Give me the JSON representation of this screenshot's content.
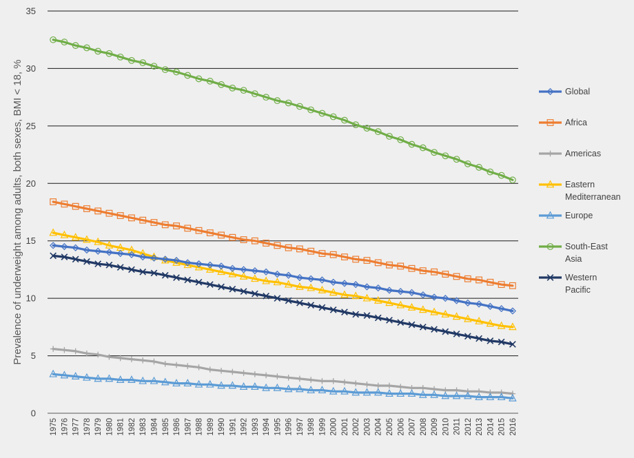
{
  "chart_data": {
    "type": "line",
    "ylabel": "Prevalence of underweight among adults, both sexes, BMI < 18, %",
    "ylim": [
      0,
      35
    ],
    "yticks": [
      "0",
      "5",
      "10",
      "15",
      "20",
      "25",
      "30",
      "35"
    ],
    "grid": true,
    "legend_position": "right",
    "x": [
      "1975",
      "1976",
      "1977",
      "1978",
      "1979",
      "1980",
      "1981",
      "1982",
      "1983",
      "1984",
      "1985",
      "1986",
      "1987",
      "1988",
      "1989",
      "1990",
      "1991",
      "1992",
      "1993",
      "1994",
      "1995",
      "1996",
      "1997",
      "1998",
      "1999",
      "2000",
      "2001",
      "2002",
      "2003",
      "2004",
      "2005",
      "2006",
      "2007",
      "2008",
      "2009",
      "2010",
      "2011",
      "2012",
      "2013",
      "2014",
      "2015",
      "2016"
    ],
    "series": [
      {
        "name": "Global",
        "legend_lines": [
          "Global"
        ],
        "color": "#4472c4",
        "marker": "diamond",
        "values": [
          14.6,
          14.5,
          14.4,
          14.2,
          14.1,
          14.0,
          13.9,
          13.8,
          13.6,
          13.5,
          13.4,
          13.3,
          13.1,
          13.0,
          12.9,
          12.8,
          12.6,
          12.5,
          12.4,
          12.3,
          12.1,
          12.0,
          11.8,
          11.7,
          11.6,
          11.4,
          11.3,
          11.2,
          11.0,
          10.9,
          10.7,
          10.6,
          10.5,
          10.3,
          10.1,
          10.0,
          9.8,
          9.6,
          9.5,
          9.3,
          9.1,
          8.9
        ]
      },
      {
        "name": "Africa",
        "legend_lines": [
          "Africa"
        ],
        "color": "#ed7d31",
        "marker": "square",
        "values": [
          18.4,
          18.2,
          18.0,
          17.8,
          17.6,
          17.4,
          17.2,
          17.0,
          16.8,
          16.6,
          16.4,
          16.3,
          16.1,
          15.9,
          15.7,
          15.5,
          15.3,
          15.1,
          15.0,
          14.8,
          14.6,
          14.4,
          14.3,
          14.1,
          13.9,
          13.8,
          13.6,
          13.4,
          13.3,
          13.1,
          12.9,
          12.8,
          12.6,
          12.4,
          12.3,
          12.1,
          11.9,
          11.7,
          11.6,
          11.4,
          11.2,
          11.1
        ]
      },
      {
        "name": "Americas",
        "legend_lines": [
          "Americas"
        ],
        "color": "#a5a5a5",
        "marker": "plus",
        "values": [
          5.6,
          5.5,
          5.4,
          5.2,
          5.1,
          4.9,
          4.8,
          4.7,
          4.6,
          4.5,
          4.3,
          4.2,
          4.1,
          4.0,
          3.8,
          3.7,
          3.6,
          3.5,
          3.4,
          3.3,
          3.2,
          3.1,
          3.0,
          2.9,
          2.8,
          2.8,
          2.7,
          2.6,
          2.5,
          2.4,
          2.4,
          2.3,
          2.2,
          2.2,
          2.1,
          2.0,
          2.0,
          1.9,
          1.9,
          1.8,
          1.8,
          1.7
        ]
      },
      {
        "name": "Eastern Mediterranean",
        "legend_lines": [
          "Eastern",
          "Mediterranean"
        ],
        "color": "#ffc000",
        "marker": "triangle",
        "values": [
          15.7,
          15.5,
          15.3,
          15.1,
          14.9,
          14.6,
          14.4,
          14.2,
          13.9,
          13.6,
          13.3,
          13.1,
          12.9,
          12.7,
          12.5,
          12.3,
          12.1,
          11.9,
          11.7,
          11.5,
          11.4,
          11.2,
          11.0,
          10.9,
          10.7,
          10.5,
          10.3,
          10.2,
          10.0,
          9.8,
          9.6,
          9.4,
          9.2,
          9.0,
          8.8,
          8.6,
          8.4,
          8.2,
          8.0,
          7.8,
          7.6,
          7.5
        ]
      },
      {
        "name": "Europe",
        "legend_lines": [
          "Europe"
        ],
        "color": "#5b9bd5",
        "marker": "triangle",
        "values": [
          3.4,
          3.3,
          3.2,
          3.1,
          3.0,
          3.0,
          2.9,
          2.9,
          2.8,
          2.8,
          2.7,
          2.6,
          2.6,
          2.5,
          2.5,
          2.4,
          2.4,
          2.3,
          2.3,
          2.2,
          2.2,
          2.1,
          2.1,
          2.0,
          2.0,
          1.9,
          1.9,
          1.8,
          1.8,
          1.8,
          1.7,
          1.7,
          1.7,
          1.6,
          1.6,
          1.5,
          1.5,
          1.5,
          1.4,
          1.4,
          1.4,
          1.3
        ]
      },
      {
        "name": "South-East Asia",
        "legend_lines": [
          "South-East",
          "Asia"
        ],
        "color": "#70ad47",
        "marker": "circle",
        "values": [
          32.5,
          32.3,
          32.0,
          31.8,
          31.5,
          31.3,
          31.0,
          30.7,
          30.5,
          30.2,
          29.9,
          29.7,
          29.4,
          29.1,
          28.9,
          28.6,
          28.3,
          28.1,
          27.8,
          27.5,
          27.2,
          27.0,
          26.7,
          26.4,
          26.1,
          25.8,
          25.5,
          25.1,
          24.8,
          24.5,
          24.1,
          23.8,
          23.4,
          23.1,
          22.7,
          22.4,
          22.1,
          21.7,
          21.4,
          21.0,
          20.7,
          20.3
        ]
      },
      {
        "name": "Western Pacific",
        "legend_lines": [
          "Western",
          "Pacific"
        ],
        "color": "#203864",
        "marker": "x",
        "values": [
          13.7,
          13.6,
          13.4,
          13.2,
          13.0,
          12.9,
          12.7,
          12.5,
          12.3,
          12.2,
          12.0,
          11.8,
          11.6,
          11.4,
          11.2,
          11.0,
          10.8,
          10.6,
          10.4,
          10.2,
          10.0,
          9.8,
          9.6,
          9.4,
          9.2,
          9.0,
          8.8,
          8.6,
          8.5,
          8.3,
          8.1,
          7.9,
          7.7,
          7.5,
          7.3,
          7.1,
          6.9,
          6.7,
          6.5,
          6.3,
          6.2,
          6.0
        ]
      }
    ]
  }
}
